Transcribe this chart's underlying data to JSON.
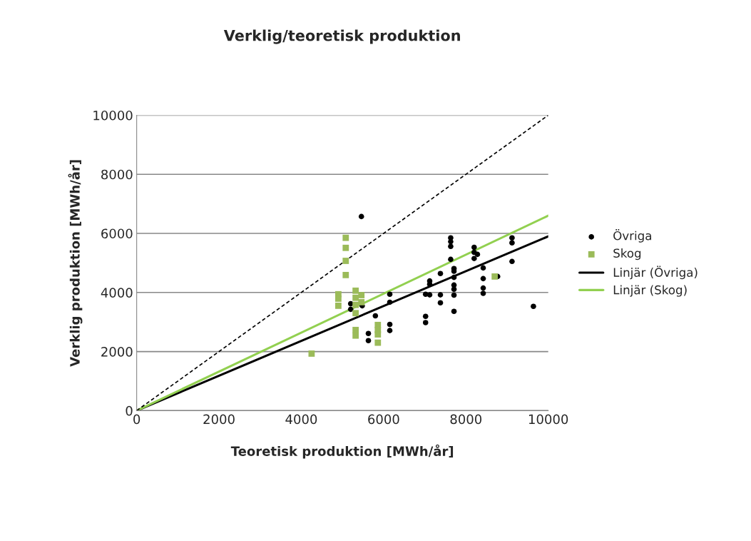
{
  "chart_data": {
    "type": "scatter",
    "title": "Verklig/teoretisk produktion",
    "xlabel": "Teoretisk produktion [MWh/år]",
    "ylabel": "Verklig produktion [MWh/år]",
    "xlim": [
      0,
      10000
    ],
    "ylim": [
      0,
      10000
    ],
    "xticks": [
      0,
      2000,
      4000,
      6000,
      8000,
      10000
    ],
    "yticks": [
      0,
      2000,
      4000,
      6000,
      8000,
      10000
    ],
    "grid": "y",
    "legend": "right",
    "series": [
      {
        "name": "Övriga",
        "marker": "circle",
        "color": "#000000",
        "x": [
          5460,
          5200,
          5200,
          5480,
          5800,
          5630,
          5630,
          6150,
          6150,
          6150,
          6150,
          7020,
          7020,
          7020,
          7630,
          7630,
          7630,
          7630,
          7380,
          7120,
          7120,
          7120,
          7380,
          7380,
          7710,
          7710,
          7710,
          7710,
          7710,
          7710,
          7710,
          8200,
          8200,
          8280,
          8200,
          8420,
          8420,
          8420,
          8420,
          8770,
          9120,
          9120,
          9120,
          9640
        ],
        "values": [
          6570,
          3620,
          3430,
          3550,
          3210,
          2610,
          2370,
          3940,
          3670,
          2920,
          2710,
          3940,
          3190,
          2980,
          5850,
          5720,
          5560,
          5120,
          4640,
          4390,
          4280,
          3920,
          3920,
          3650,
          4810,
          4720,
          4510,
          4250,
          4110,
          3910,
          3360,
          5530,
          5360,
          5290,
          5150,
          4830,
          4470,
          4150,
          3970,
          4540,
          5850,
          5680,
          5050,
          3530
        ]
      },
      {
        "name": "Skog",
        "marker": "square",
        "color": "#9bbb59",
        "x": [
          5080,
          5080,
          5080,
          5080,
          4900,
          4900,
          4900,
          5320,
          5320,
          5320,
          5320,
          5460,
          5460,
          5320,
          5320,
          5860,
          5860,
          5860,
          5860,
          4250,
          8700
        ],
        "values": [
          5850,
          5510,
          5070,
          4590,
          3940,
          3790,
          3550,
          4060,
          3820,
          3580,
          3300,
          3910,
          3670,
          2730,
          2540,
          2900,
          2730,
          2580,
          2300,
          1930,
          4540
        ]
      },
      {
        "name": "Linjär (Övriga)",
        "type": "line",
        "marker": "none",
        "line_style": "solid",
        "color": "#000000",
        "x": [
          0,
          10000
        ],
        "values": [
          0,
          5900
        ]
      },
      {
        "name": "Linjär (Skog)",
        "type": "line",
        "marker": "none",
        "line_style": "solid",
        "color": "#92d050",
        "x": [
          0,
          10000
        ],
        "values": [
          0,
          6600
        ]
      },
      {
        "type": "line",
        "marker": "none",
        "line_style": "dashed",
        "color": "#000000",
        "x": [
          0,
          10000
        ],
        "values": [
          0,
          10000
        ]
      }
    ]
  }
}
